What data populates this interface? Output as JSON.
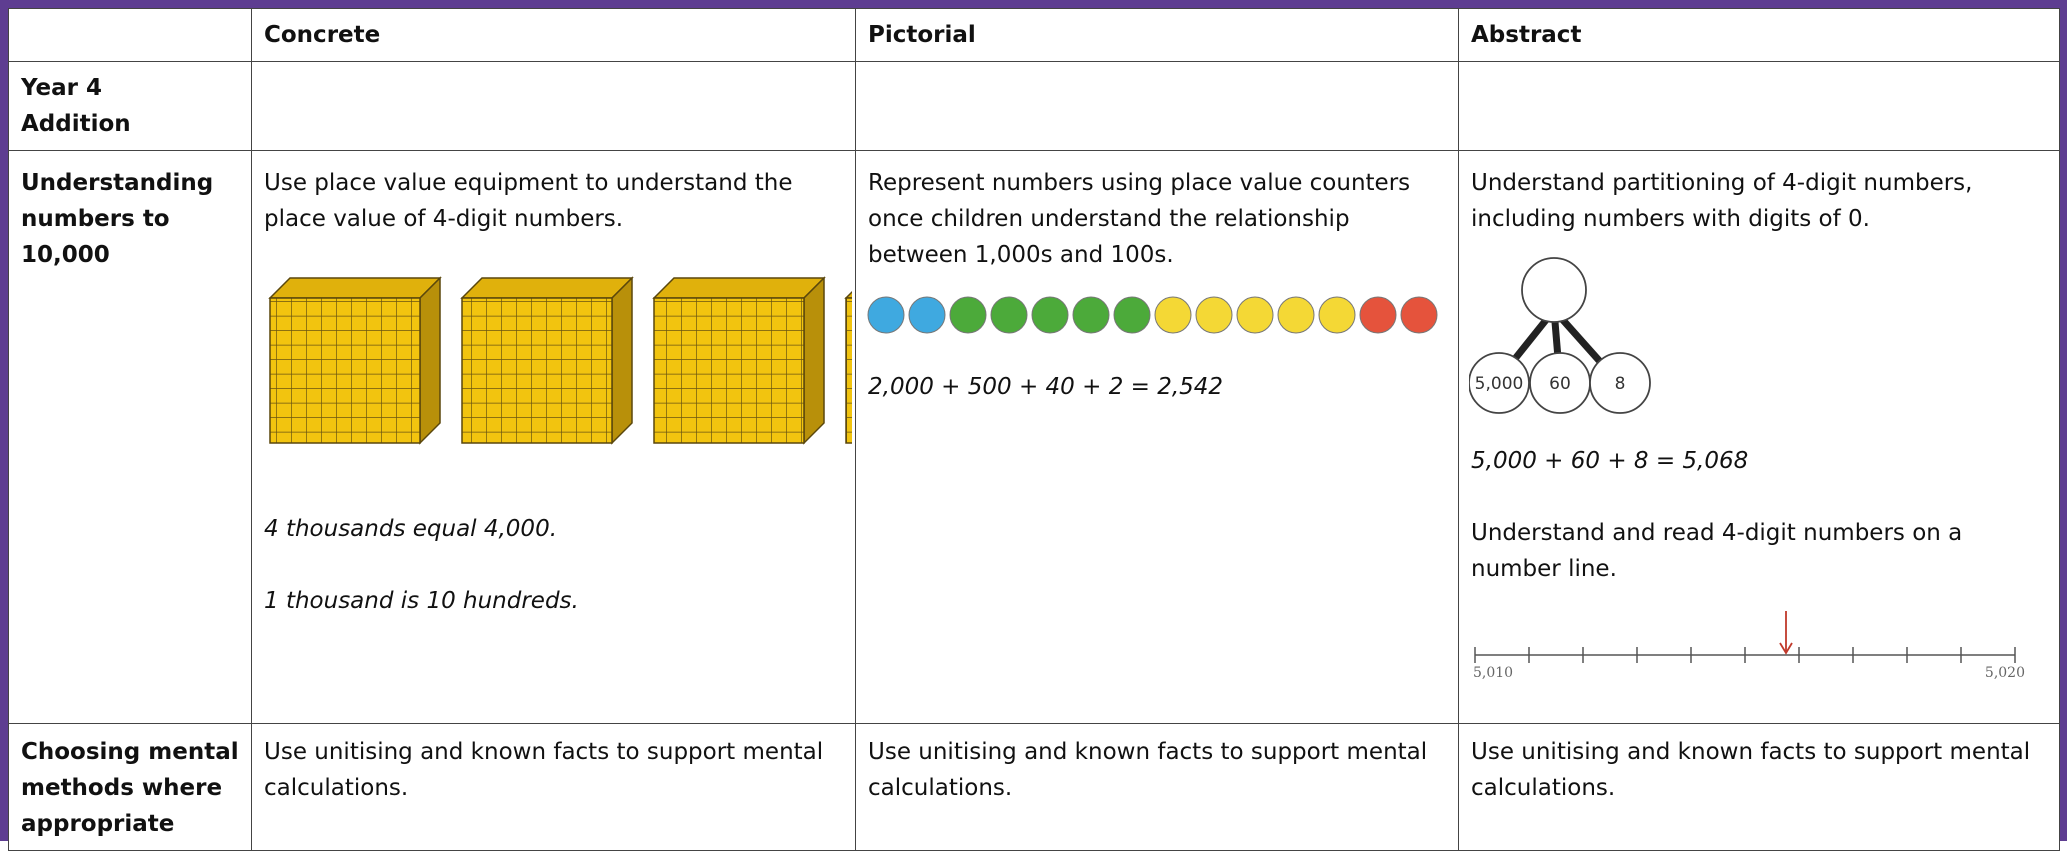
{
  "table": {
    "header": [
      "Concrete",
      "Pictorial",
      "Abstract"
    ],
    "year_row": [
      "Year 4",
      "Addition"
    ],
    "rows": [
      {
        "label": "Understanding numbers to 10,000",
        "concrete": {
          "text": "Use place value equipment to understand the place value of 4-digit numbers.",
          "notes": [
            "4 thousands equal 4,000.",
            "1 thousand is 10 hundreds."
          ]
        },
        "pictorial": {
          "text": "Represent numbers using place value counters once children understand the relationship between 1,000s and 100s.",
          "equation": "2,000 + 500 + 40 + 2 = 2,542"
        },
        "abstract": {
          "text": "Understand partitioning of 4-digit numbers, including numbers with digits of 0.",
          "parts": [
            "5,000",
            "60",
            "8"
          ],
          "equation": "5,000 + 60 + 8 = 5,068",
          "text2": "Understand and read 4-digit numbers on a number line.",
          "number_line": [
            "5,010",
            "5,020"
          ]
        }
      },
      {
        "label": "Choosing mental methods where appropriate",
        "concrete": {
          "text": "Use unitising and known facts to support mental calculations."
        },
        "pictorial": {
          "text": "Use unitising and known facts to support mental calculations."
        },
        "abstract": {
          "text": "Use unitising and known facts to support mental calculations."
        }
      }
    ]
  }
}
